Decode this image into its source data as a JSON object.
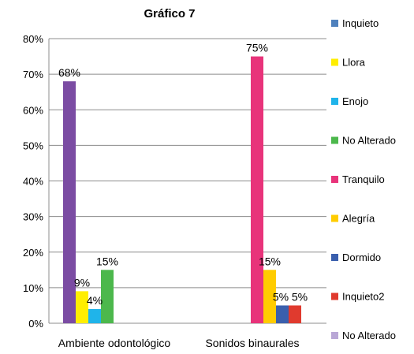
{
  "chart_data": {
    "type": "bar",
    "title": "Gráfico 7",
    "xlabel": "",
    "ylabel": "",
    "ylim": [
      0,
      80
    ],
    "yticks": [
      0,
      10,
      20,
      30,
      40,
      50,
      60,
      70,
      80
    ],
    "ytick_labels": [
      "0%",
      "10%",
      "20%",
      "30%",
      "40%",
      "50%",
      "60%",
      "70%",
      "80%"
    ],
    "grid": true,
    "legend_position": "right",
    "categories": [
      "Ambiente odontológico",
      "Sonidos binaurales"
    ],
    "series": [
      {
        "name": "Inquieto",
        "color": "#4f81bd",
        "values": [
          null,
          null
        ],
        "labels": [
          "",
          ""
        ]
      },
      {
        "name": "Llora",
        "color": "#ffee00",
        "values": [
          null,
          null
        ],
        "labels": [
          "",
          ""
        ]
      },
      {
        "name": "Enojo",
        "color": "#1fb4ea",
        "values": [
          null,
          null
        ],
        "labels": [
          "",
          ""
        ]
      },
      {
        "name": "No Alterado",
        "color": "#4cb84c",
        "values": [
          null,
          null
        ],
        "labels": [
          "",
          ""
        ]
      },
      {
        "name": "Tranquilo",
        "color": "#e8337a",
        "values": [
          null,
          null
        ],
        "labels": [
          "",
          ""
        ]
      },
      {
        "name": "Alegría",
        "color": "#ffcc00",
        "values": [
          null,
          null
        ],
        "labels": [
          "",
          ""
        ]
      },
      {
        "name": "Dormido",
        "color": "#3a5fad",
        "values": [
          null,
          null
        ],
        "labels": [
          "",
          ""
        ]
      },
      {
        "name": "Inquieto2",
        "color": "#e03a2e",
        "values": [
          null,
          null
        ],
        "labels": [
          "",
          ""
        ]
      },
      {
        "name": "No Alterado",
        "color": "#b9a7d6",
        "values": [
          null,
          null
        ],
        "labels": [
          "",
          ""
        ]
      }
    ],
    "bars": [
      {
        "category": 0,
        "color": "#7b4ca3",
        "value": 68,
        "label": "68%"
      },
      {
        "category": 0,
        "color": "#ffee00",
        "value": 9,
        "label": "9%"
      },
      {
        "category": 0,
        "color": "#1fb4ea",
        "value": 4,
        "label": "4%"
      },
      {
        "category": 0,
        "color": "#4cb84c",
        "value": 15,
        "label": "15%"
      },
      {
        "category": 1,
        "color": "#e8337a",
        "value": 75,
        "label": "75%"
      },
      {
        "category": 1,
        "color": "#ffcc00",
        "value": 15,
        "label": "15%"
      },
      {
        "category": 1,
        "color": "#3a5fad",
        "value": 5,
        "label": "5%"
      },
      {
        "category": 1,
        "color": "#e03a2e",
        "value": 5,
        "label": "5%"
      }
    ]
  }
}
